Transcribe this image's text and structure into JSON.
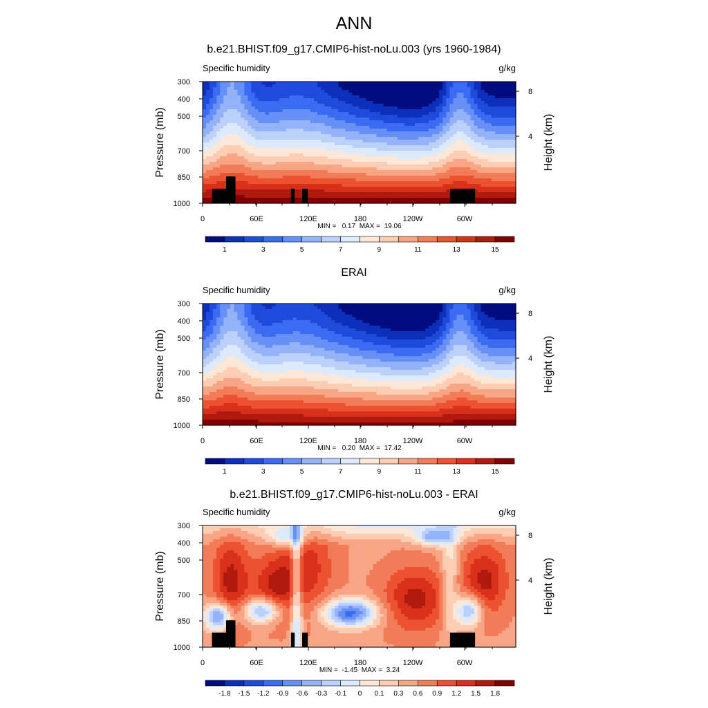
{
  "page_title": "ANN",
  "chart_data": [
    {
      "type": "contour",
      "title": "b.e21.BHIST.f09_g17.CMIP6-hist-noLu.003 (yrs 1960-1984)",
      "left_label": "Specific humidity",
      "right_label": "g/kg",
      "ylabel": "Pressure (mb)",
      "y2label": "Height (km)",
      "yticks": [
        "300",
        "400",
        "500",
        "700",
        "850",
        "1000"
      ],
      "y2ticks": [
        "8",
        "4"
      ],
      "xticks": [
        "0",
        "60E",
        "120E",
        "180",
        "120W",
        "60W"
      ],
      "min_label": "MIN =",
      "min_value": "0.17",
      "max_label": "MAX =",
      "max_value": "19.06",
      "colorbar_labels": [
        "1",
        "3",
        "5",
        "7",
        "9",
        "11",
        "13",
        "15"
      ],
      "colorbar_colors": [
        "#000c80",
        "#0c2fbc",
        "#1f4bdb",
        "#3a6bf2",
        "#6690f5",
        "#93b2f8",
        "#bbd0fb",
        "#dde9fd",
        "#fde7d7",
        "#fcccb3",
        "#f8a585",
        "#f37c58",
        "#ec5130",
        "#d8301a",
        "#b01a0e",
        "#800000"
      ]
    },
    {
      "type": "contour",
      "title": "ERAI",
      "left_label": "Specific humidity",
      "right_label": "g/kg",
      "ylabel": "Pressure (mb)",
      "y2label": "Height (km)",
      "yticks": [
        "300",
        "400",
        "500",
        "700",
        "850",
        "1000"
      ],
      "y2ticks": [
        "8",
        "4"
      ],
      "xticks": [
        "0",
        "60E",
        "120E",
        "180",
        "120W",
        "60W"
      ],
      "min_label": "MIN =",
      "min_value": "0.20",
      "max_label": "MAX =",
      "max_value": "17.42",
      "colorbar_labels": [
        "1",
        "3",
        "5",
        "7",
        "9",
        "11",
        "13",
        "15"
      ],
      "colorbar_colors": [
        "#000c80",
        "#0c2fbc",
        "#1f4bdb",
        "#3a6bf2",
        "#6690f5",
        "#93b2f8",
        "#bbd0fb",
        "#dde9fd",
        "#fde7d7",
        "#fcccb3",
        "#f8a585",
        "#f37c58",
        "#ec5130",
        "#d8301a",
        "#b01a0e",
        "#800000"
      ]
    },
    {
      "type": "contour",
      "title": "b.e21.BHIST.f09_g17.CMIP6-hist-noLu.003 - ERAI",
      "left_label": "Specific humidity",
      "right_label": "g/kg",
      "ylabel": "Pressure (mb)",
      "y2label": "Height (km)",
      "yticks": [
        "300",
        "400",
        "500",
        "700",
        "850",
        "1000"
      ],
      "y2ticks": [
        "8",
        "4"
      ],
      "xticks": [
        "0",
        "60E",
        "120E",
        "180",
        "120W",
        "60W"
      ],
      "min_label": "MIN =",
      "min_value": "-1.45",
      "max_label": "MAX =",
      "max_value": "3.24",
      "colorbar_labels": [
        "-1.8",
        "-1.5",
        "-1.2",
        "-0.9",
        "-0.6",
        "-0.3",
        "-0.1",
        "0",
        "0.1",
        "0.3",
        "0.6",
        "0.9",
        "1.2",
        "1.5",
        "1.8"
      ],
      "colorbar_colors": [
        "#000c80",
        "#0c2fbc",
        "#1f4bdb",
        "#3a6bf2",
        "#6690f5",
        "#93b2f8",
        "#bbd0fb",
        "#dde9fd",
        "#fde7d7",
        "#fcccb3",
        "#f8a585",
        "#f37c58",
        "#ec5130",
        "#d8301a",
        "#b01a0e",
        "#800000"
      ]
    }
  ]
}
